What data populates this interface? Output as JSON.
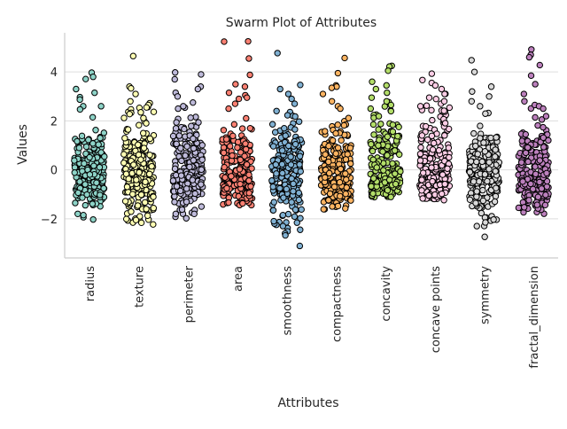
{
  "chart_data": {
    "type": "scatter",
    "subtype": "swarm",
    "title": "Swarm Plot of Attributes",
    "xlabel": "Attributes",
    "ylabel": "Values",
    "ylim": [
      -3.6,
      5.6
    ],
    "yticks": [
      -2,
      0,
      2,
      4
    ],
    "grid": "horizontal",
    "legend": "none",
    "point_edge_color": "#000000",
    "categories": [
      "radius",
      "texture",
      "perimeter",
      "area",
      "smoothness",
      "compactness",
      "concavity",
      "concave points",
      "symmetry",
      "fractal_dimension"
    ],
    "colors": [
      "#8dd3c7",
      "#ffffb3",
      "#bebada",
      "#fb8072",
      "#80b1d3",
      "#fdb462",
      "#b3de69",
      "#fccde5",
      "#d9d9d9",
      "#bc80bd"
    ],
    "series": [
      {
        "category": "radius",
        "min": -2.03,
        "q1": -0.67,
        "median": -0.22,
        "q3": 0.47,
        "max": 3.97,
        "outliers": [
          3.97,
          3.8,
          3.71,
          3.3,
          3.15,
          2.97,
          2.87,
          2.6,
          2.6,
          2.47,
          -1.8,
          -1.85,
          -2.03
        ]
      },
      {
        "category": "texture",
        "min": -2.23,
        "q1": -0.73,
        "median": -0.1,
        "q3": 0.58,
        "max": 4.65,
        "outliers": [
          4.65,
          3.4,
          3.33,
          3.1,
          2.8,
          2.65,
          2.55,
          2.35,
          -1.9,
          -2.05,
          -2.23
        ]
      },
      {
        "category": "perimeter",
        "min": -1.98,
        "q1": -0.69,
        "median": -0.24,
        "q3": 0.5,
        "max": 3.98,
        "outliers": [
          3.98,
          3.9,
          3.7,
          3.4,
          3.3,
          3.15,
          3.0,
          2.75,
          2.6,
          2.5,
          -1.8,
          -1.98
        ]
      },
      {
        "category": "area",
        "min": -1.45,
        "q1": -0.67,
        "median": -0.3,
        "q3": 0.36,
        "max": 5.25,
        "outliers": [
          5.25,
          5.24,
          4.55,
          3.88,
          3.5,
          3.4,
          3.15,
          3.05,
          2.95,
          2.9,
          2.7,
          2.5
        ]
      },
      {
        "category": "smoothness",
        "min": -3.11,
        "q1": -0.71,
        "median": -0.03,
        "q3": 0.64,
        "max": 4.77,
        "outliers": [
          4.77,
          3.47,
          3.3,
          3.1,
          2.9,
          2.7,
          -2.1,
          -2.15,
          -2.3,
          -2.45,
          -3.11
        ]
      },
      {
        "category": "compactness",
        "min": -1.61,
        "q1": -0.75,
        "median": -0.23,
        "q3": 0.5,
        "max": 4.57,
        "outliers": [
          4.57,
          3.95,
          3.45,
          3.4,
          3.35,
          3.1,
          2.8,
          2.6,
          2.5,
          -1.61
        ]
      },
      {
        "category": "concavity",
        "min": -1.12,
        "q1": -0.74,
        "median": -0.34,
        "q3": 0.53,
        "max": 4.25,
        "outliers": [
          4.25,
          4.22,
          4.05,
          3.6,
          3.45,
          3.3,
          3.15,
          2.95,
          2.8,
          2.65,
          2.5
        ]
      },
      {
        "category": "concave points",
        "min": -1.26,
        "q1": -0.74,
        "median": -0.4,
        "q3": 0.65,
        "max": 3.93,
        "outliers": [
          3.93,
          3.67,
          3.55,
          3.45,
          3.3,
          3.1,
          2.95,
          2.8,
          2.6
        ]
      },
      {
        "category": "symmetry",
        "min": -2.74,
        "q1": -0.7,
        "median": -0.07,
        "q3": 0.53,
        "max": 4.48,
        "outliers": [
          4.48,
          4.0,
          3.4,
          3.2,
          3.0,
          2.8,
          2.6,
          -1.95,
          -2.15,
          -2.3,
          -2.74
        ]
      },
      {
        "category": "fractal_dimension",
        "min": -1.82,
        "q1": -0.72,
        "median": -0.18,
        "q3": 0.45,
        "max": 4.92,
        "outliers": [
          4.92,
          4.7,
          4.6,
          4.28,
          3.85,
          3.5,
          3.1,
          2.8,
          2.65,
          2.6,
          2.5
        ]
      }
    ]
  }
}
